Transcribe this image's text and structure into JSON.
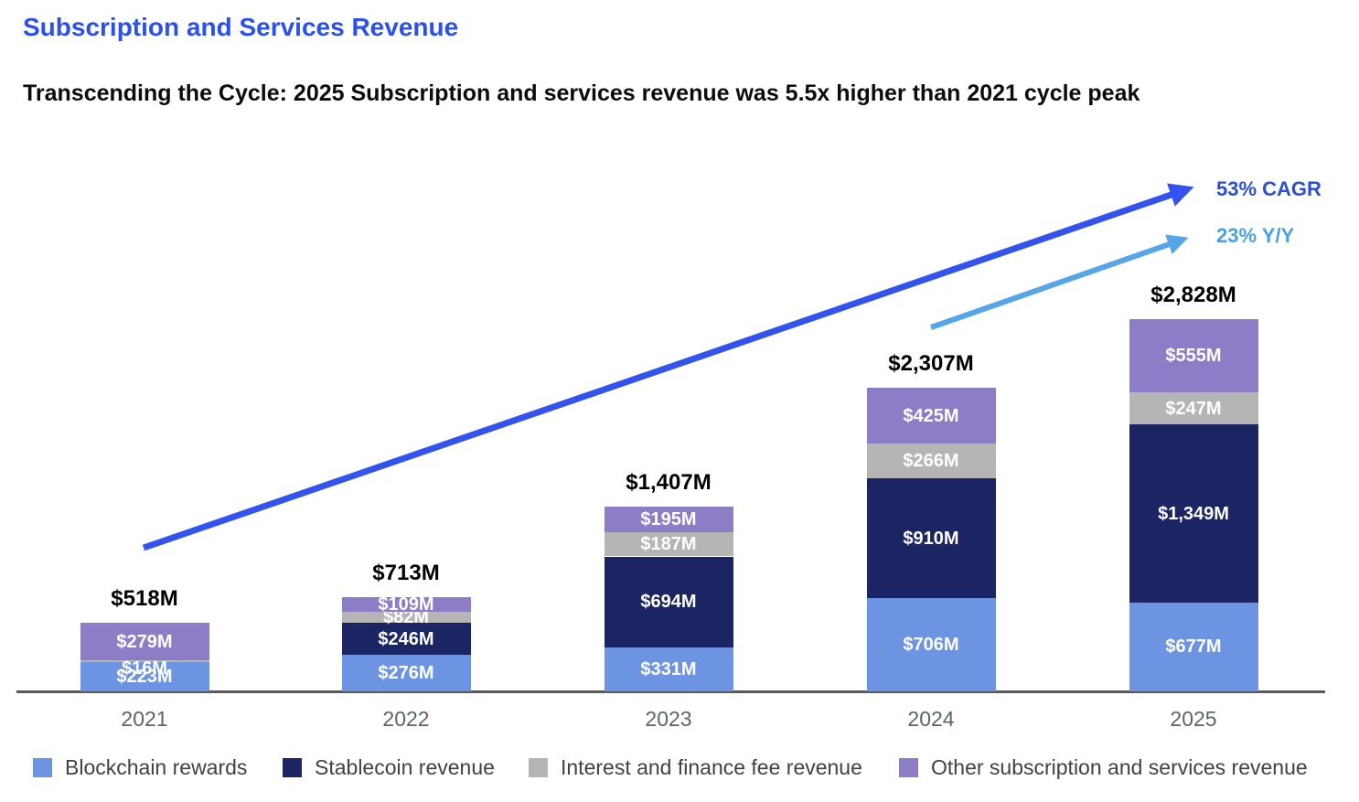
{
  "chart_data": {
    "type": "bar",
    "stacked": true,
    "title": "Subscription and Services Revenue",
    "subtitle": "Transcending the Cycle: 2025 Subscription and services revenue was 5.5x higher than 2021 cycle peak",
    "categories": [
      "2021",
      "2022",
      "2023",
      "2024",
      "2025"
    ],
    "unit": "$M",
    "series": [
      {
        "name": "Blockchain rewards",
        "color": "#6d93e3",
        "values": [
          223,
          276,
          331,
          706,
          677
        ],
        "labels": [
          "$223M",
          "$276M",
          "$331M",
          "$706M",
          "$677M"
        ]
      },
      {
        "name": "Stablecoin revenue",
        "color": "#1b2563",
        "values": [
          0,
          246,
          694,
          910,
          1349
        ],
        "labels": [
          "",
          "$246M",
          "$694M",
          "$910M",
          "$1,349M"
        ]
      },
      {
        "name": "Interest and finance fee revenue",
        "color": "#b5b5b5",
        "values": [
          16,
          82,
          187,
          266,
          247
        ],
        "labels": [
          "$16M",
          "$82M",
          "$187M",
          "$266M",
          "$247M"
        ]
      },
      {
        "name": "Other subscription and services revenue",
        "color": "#8d7cc6",
        "values": [
          279,
          109,
          195,
          425,
          555
        ],
        "labels": [
          "$279M",
          "$109M",
          "$195M",
          "$425M",
          "$555M"
        ]
      }
    ],
    "totals": [
      518,
      713,
      1407,
      2307,
      2828
    ],
    "total_labels": [
      "$518M",
      "$713M",
      "$1,407M",
      "$2,307M",
      "$2,828M"
    ],
    "ylim": [
      0,
      2828
    ],
    "grid": false,
    "legend_position": "bottom",
    "annotations": [
      {
        "text": "53% CAGR",
        "color": "#2a4fd8",
        "arrow_color": "#3353ee"
      },
      {
        "text": "23% Y/Y",
        "color": "#4aa0e6",
        "arrow_color": "#55a5e8"
      }
    ]
  },
  "colors": {
    "title": "#2b50f0",
    "subtitle": "#0c0c0c",
    "axis_line": "#58595b",
    "tick": "#5f6368",
    "legend_text": "#3f4245",
    "bar_label": "#ffffff",
    "total_label": "#000000"
  }
}
